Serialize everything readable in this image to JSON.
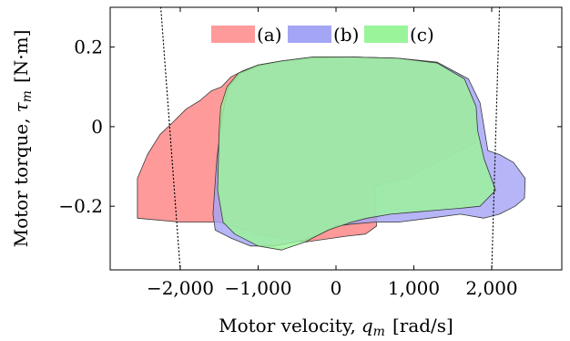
{
  "chart_data": {
    "type": "area",
    "xlabel": "Motor velocity, q_m [rad/s]",
    "xlabel_text": "Motor velocity,",
    "xlabel_symbol": "q",
    "xlabel_sub": "m",
    "xlabel_unit": "[rad/s]",
    "ylabel": "Motor torque, τ_m [N·m]",
    "ylabel_text": "Motor torque,",
    "ylabel_symbol": "τ",
    "ylabel_sub": "m",
    "ylabel_unit": "[N·m]",
    "xlim": [
      -2900,
      2900
    ],
    "ylim": [
      -0.36,
      0.3
    ],
    "x_ticks": [
      -2000,
      -1000,
      0,
      1000,
      2000
    ],
    "x_tick_labels": [
      "−2,000",
      "−1,000",
      "0",
      "1,000",
      "2,000"
    ],
    "y_ticks": [
      -0.2,
      0,
      0.2
    ],
    "y_tick_labels": [
      "−0.2",
      "0",
      "0.2"
    ],
    "grid": false,
    "legend_position": "top-center",
    "series": [
      {
        "name": "(a)",
        "color": "#ff9a9a",
        "polygon": [
          [
            -2550,
            -0.23
          ],
          [
            -2550,
            -0.13
          ],
          [
            -2420,
            -0.07
          ],
          [
            -2260,
            -0.02
          ],
          [
            -2100,
            0.01
          ],
          [
            -1920,
            0.045
          ],
          [
            -1750,
            0.065
          ],
          [
            -1600,
            0.09
          ],
          [
            -1470,
            0.1
          ],
          [
            -1350,
            0.125
          ],
          [
            -1200,
            0.14
          ],
          [
            -1000,
            0.155
          ],
          [
            -700,
            0.165
          ],
          [
            -300,
            0.175
          ],
          [
            200,
            0.175
          ],
          [
            800,
            0.172
          ],
          [
            1300,
            0.16
          ],
          [
            1650,
            0.12
          ],
          [
            1800,
            0.05
          ],
          [
            1800,
            -0.04
          ],
          [
            1500,
            -0.07
          ],
          [
            1200,
            -0.1
          ],
          [
            900,
            -0.13
          ],
          [
            650,
            -0.14
          ],
          [
            500,
            -0.15
          ],
          [
            520,
            -0.25
          ],
          [
            380,
            -0.27
          ],
          [
            150,
            -0.275
          ],
          [
            -400,
            -0.29
          ],
          [
            -1000,
            -0.27
          ],
          [
            -1500,
            -0.24
          ],
          [
            -2000,
            -0.24
          ]
        ]
      },
      {
        "name": "(b)",
        "color": "#a5a5f5",
        "polygon": [
          [
            -1580,
            -0.22
          ],
          [
            -1530,
            -0.08
          ],
          [
            -1460,
            0.03
          ],
          [
            -1380,
            0.1
          ],
          [
            -1220,
            0.135
          ],
          [
            -1000,
            0.152
          ],
          [
            -700,
            0.165
          ],
          [
            -300,
            0.172
          ],
          [
            200,
            0.175
          ],
          [
            800,
            0.172
          ],
          [
            1300,
            0.162
          ],
          [
            1700,
            0.12
          ],
          [
            1850,
            0.06
          ],
          [
            1950,
            -0.06
          ],
          [
            2100,
            -0.07
          ],
          [
            2280,
            -0.09
          ],
          [
            2430,
            -0.13
          ],
          [
            2420,
            -0.18
          ],
          [
            2300,
            -0.2
          ],
          [
            2100,
            -0.22
          ],
          [
            1900,
            -0.23
          ],
          [
            1600,
            -0.22
          ],
          [
            1200,
            -0.23
          ],
          [
            800,
            -0.24
          ],
          [
            500,
            -0.24
          ],
          [
            200,
            -0.245
          ],
          [
            0,
            -0.25
          ],
          [
            -200,
            -0.27
          ],
          [
            -400,
            -0.285
          ],
          [
            -800,
            -0.3
          ],
          [
            -1100,
            -0.3
          ],
          [
            -1350,
            -0.28
          ],
          [
            -1550,
            -0.26
          ]
        ]
      },
      {
        "name": "(c)",
        "color": "#9af59a",
        "polygon": [
          [
            -1500,
            -0.01
          ],
          [
            -1480,
            0.05
          ],
          [
            -1400,
            0.1
          ],
          [
            -1250,
            0.135
          ],
          [
            -1000,
            0.155
          ],
          [
            -700,
            0.165
          ],
          [
            -300,
            0.175
          ],
          [
            200,
            0.175
          ],
          [
            800,
            0.172
          ],
          [
            1300,
            0.16
          ],
          [
            1650,
            0.12
          ],
          [
            1800,
            0.05
          ],
          [
            1820,
            -0.01
          ],
          [
            1900,
            -0.08
          ],
          [
            2050,
            -0.16
          ],
          [
            1850,
            -0.2
          ],
          [
            1600,
            -0.205
          ],
          [
            1300,
            -0.21
          ],
          [
            1000,
            -0.215
          ],
          [
            700,
            -0.22
          ],
          [
            400,
            -0.23
          ],
          [
            200,
            -0.24
          ],
          [
            -100,
            -0.26
          ],
          [
            -400,
            -0.29
          ],
          [
            -700,
            -0.31
          ],
          [
            -1000,
            -0.3
          ],
          [
            -1300,
            -0.27
          ],
          [
            -1450,
            -0.24
          ],
          [
            -1520,
            -0.16
          ]
        ]
      }
    ],
    "dotted_limit_lines": [
      {
        "x": [
          -2250,
          -2000
        ],
        "y": [
          0.3,
          -0.36
        ]
      },
      {
        "x": [
          2100,
          2000
        ],
        "y": [
          0.3,
          -0.36
        ]
      }
    ]
  }
}
